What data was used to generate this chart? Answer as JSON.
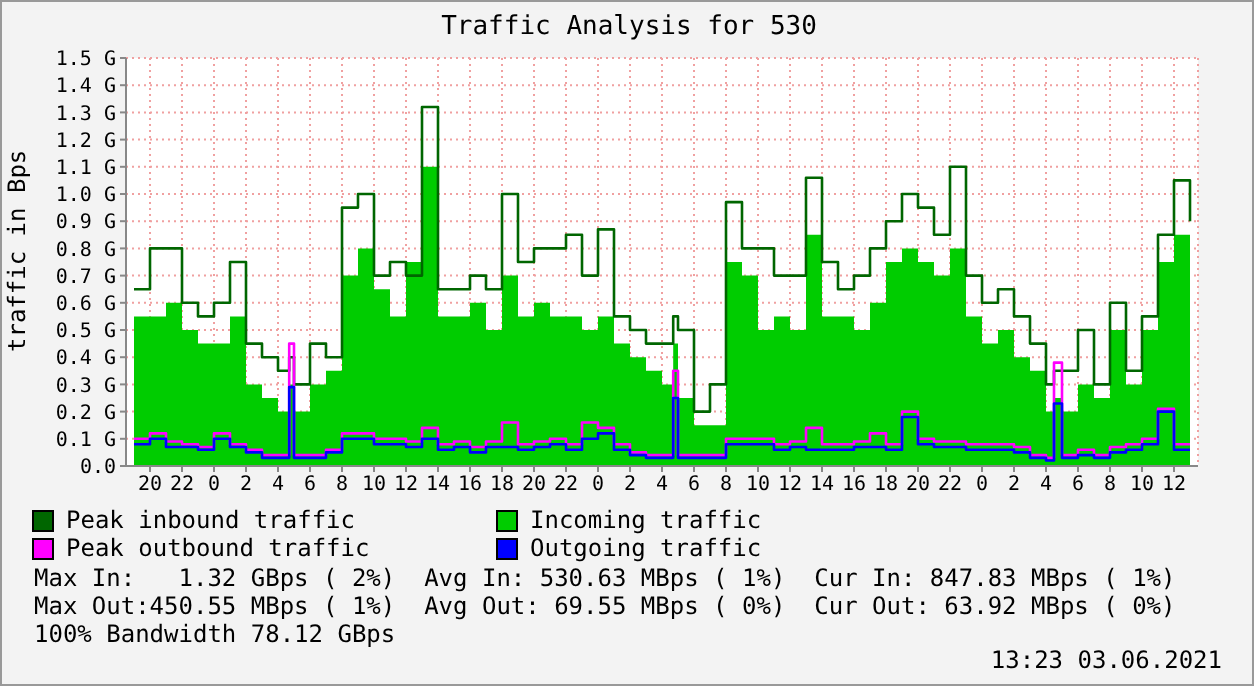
{
  "chart_data": {
    "type": "step",
    "title": "Traffic Analysis for 530",
    "ylabel": "traffic in Bps",
    "x": [
      "2021-05-31T19:00",
      "2021-05-31T20:00",
      "2021-05-31T21:00",
      "2021-05-31T22:00",
      "2021-05-31T23:00",
      "2021-06-01T00:00",
      "2021-06-01T01:00",
      "2021-06-01T02:00",
      "2021-06-01T03:00",
      "2021-06-01T04:00",
      "2021-06-01T04:42",
      "2021-06-01T05:00",
      "2021-06-01T06:00",
      "2021-06-01T07:00",
      "2021-06-01T08:00",
      "2021-06-01T09:00",
      "2021-06-01T10:00",
      "2021-06-01T11:00",
      "2021-06-01T12:00",
      "2021-06-01T13:00",
      "2021-06-01T14:00",
      "2021-06-01T15:00",
      "2021-06-01T16:00",
      "2021-06-01T17:00",
      "2021-06-01T18:00",
      "2021-06-01T19:00",
      "2021-06-01T20:00",
      "2021-06-01T21:00",
      "2021-06-01T22:00",
      "2021-06-01T23:00",
      "2021-06-02T00:00",
      "2021-06-02T01:00",
      "2021-06-02T02:00",
      "2021-06-02T03:00",
      "2021-06-02T04:00",
      "2021-06-02T04:42",
      "2021-06-02T05:00",
      "2021-06-02T06:00",
      "2021-06-02T07:00",
      "2021-06-02T08:00",
      "2021-06-02T09:00",
      "2021-06-02T10:00",
      "2021-06-02T11:00",
      "2021-06-02T12:00",
      "2021-06-02T13:00",
      "2021-06-02T14:00",
      "2021-06-02T15:00",
      "2021-06-02T16:00",
      "2021-06-02T17:00",
      "2021-06-02T18:00",
      "2021-06-02T19:00",
      "2021-06-02T20:00",
      "2021-06-02T21:00",
      "2021-06-02T22:00",
      "2021-06-02T23:00",
      "2021-06-03T00:00",
      "2021-06-03T01:00",
      "2021-06-03T02:00",
      "2021-06-03T03:00",
      "2021-06-03T04:00",
      "2021-06-03T04:30",
      "2021-06-03T05:00",
      "2021-06-03T06:00",
      "2021-06-03T07:00",
      "2021-06-03T08:00",
      "2021-06-03T09:00",
      "2021-06-03T10:00",
      "2021-06-03T11:00",
      "2021-06-03T12:00",
      "2021-06-03T13:00"
    ],
    "series": [
      {
        "name": "Peak inbound traffic",
        "color": "#006600",
        "values": [
          0.65,
          0.8,
          0.8,
          0.6,
          0.55,
          0.6,
          0.75,
          0.45,
          0.4,
          0.35,
          0.4,
          0.3,
          0.45,
          0.4,
          0.95,
          1.0,
          0.7,
          0.75,
          0.7,
          1.32,
          0.65,
          0.65,
          0.7,
          0.65,
          1.0,
          0.75,
          0.8,
          0.8,
          0.85,
          0.7,
          0.87,
          0.55,
          0.5,
          0.45,
          0.45,
          0.55,
          0.5,
          0.2,
          0.3,
          0.97,
          0.8,
          0.8,
          0.7,
          0.7,
          1.06,
          0.75,
          0.65,
          0.7,
          0.8,
          0.9,
          1.0,
          0.95,
          0.85,
          1.1,
          0.7,
          0.6,
          0.65,
          0.55,
          0.45,
          0.3,
          0.35,
          0.35,
          0.5,
          0.3,
          0.6,
          0.35,
          0.55,
          0.85,
          1.05,
          0.9
        ]
      },
      {
        "name": "Incoming traffic",
        "type": "area",
        "color": "#00cc00",
        "values": [
          0.55,
          0.55,
          0.6,
          0.5,
          0.45,
          0.45,
          0.55,
          0.3,
          0.25,
          0.2,
          0.3,
          0.2,
          0.3,
          0.35,
          0.7,
          0.8,
          0.65,
          0.55,
          0.75,
          1.1,
          0.55,
          0.55,
          0.6,
          0.5,
          0.7,
          0.55,
          0.6,
          0.55,
          0.55,
          0.5,
          0.55,
          0.45,
          0.4,
          0.35,
          0.3,
          0.45,
          0.25,
          0.15,
          0.15,
          0.75,
          0.7,
          0.5,
          0.55,
          0.5,
          0.85,
          0.55,
          0.55,
          0.5,
          0.6,
          0.75,
          0.8,
          0.75,
          0.7,
          0.8,
          0.55,
          0.45,
          0.5,
          0.4,
          0.35,
          0.2,
          0.25,
          0.2,
          0.3,
          0.25,
          0.5,
          0.3,
          0.5,
          0.75,
          0.85,
          0.8
        ]
      },
      {
        "name": "Peak outbound traffic",
        "color": "#ff00ff",
        "values": [
          0.1,
          0.12,
          0.09,
          0.08,
          0.07,
          0.12,
          0.08,
          0.06,
          0.04,
          0.04,
          0.45,
          0.04,
          0.04,
          0.06,
          0.12,
          0.12,
          0.1,
          0.1,
          0.09,
          0.14,
          0.08,
          0.09,
          0.07,
          0.09,
          0.16,
          0.08,
          0.09,
          0.1,
          0.08,
          0.16,
          0.14,
          0.08,
          0.05,
          0.04,
          0.04,
          0.35,
          0.04,
          0.04,
          0.04,
          0.1,
          0.1,
          0.1,
          0.08,
          0.09,
          0.14,
          0.08,
          0.08,
          0.09,
          0.12,
          0.08,
          0.2,
          0.1,
          0.09,
          0.09,
          0.08,
          0.08,
          0.08,
          0.07,
          0.04,
          0.03,
          0.38,
          0.04,
          0.06,
          0.04,
          0.07,
          0.08,
          0.1,
          0.21,
          0.08,
          0.08
        ]
      },
      {
        "name": "Outgoing traffic",
        "color": "#0000ff",
        "values": [
          0.08,
          0.1,
          0.07,
          0.07,
          0.06,
          0.1,
          0.07,
          0.05,
          0.03,
          0.03,
          0.29,
          0.03,
          0.03,
          0.05,
          0.1,
          0.1,
          0.08,
          0.08,
          0.07,
          0.1,
          0.06,
          0.07,
          0.05,
          0.07,
          0.07,
          0.06,
          0.07,
          0.08,
          0.06,
          0.1,
          0.12,
          0.06,
          0.04,
          0.03,
          0.03,
          0.25,
          0.03,
          0.03,
          0.03,
          0.08,
          0.08,
          0.08,
          0.06,
          0.07,
          0.06,
          0.06,
          0.06,
          0.07,
          0.07,
          0.06,
          0.18,
          0.08,
          0.07,
          0.07,
          0.06,
          0.06,
          0.06,
          0.05,
          0.03,
          0.02,
          0.23,
          0.03,
          0.04,
          0.03,
          0.05,
          0.06,
          0.08,
          0.2,
          0.06,
          0.06
        ]
      }
    ],
    "xlim": [
      "2021-05-31T18:30",
      "2021-06-03T13:30"
    ],
    "xticks": [
      {
        "value": "2021-05-31T20:00",
        "label": "20"
      },
      {
        "value": "2021-05-31T22:00",
        "label": "22"
      },
      {
        "value": "2021-06-01T00:00",
        "label": "0"
      },
      {
        "value": "2021-06-01T02:00",
        "label": "2"
      },
      {
        "value": "2021-06-01T04:00",
        "label": "4"
      },
      {
        "value": "2021-06-01T06:00",
        "label": "6"
      },
      {
        "value": "2021-06-01T08:00",
        "label": "8"
      },
      {
        "value": "2021-06-01T10:00",
        "label": "10"
      },
      {
        "value": "2021-06-01T12:00",
        "label": "12"
      },
      {
        "value": "2021-06-01T14:00",
        "label": "14"
      },
      {
        "value": "2021-06-01T16:00",
        "label": "16"
      },
      {
        "value": "2021-06-01T18:00",
        "label": "18"
      },
      {
        "value": "2021-06-01T20:00",
        "label": "20"
      },
      {
        "value": "2021-06-01T22:00",
        "label": "22"
      },
      {
        "value": "2021-06-02T00:00",
        "label": "0"
      },
      {
        "value": "2021-06-02T02:00",
        "label": "2"
      },
      {
        "value": "2021-06-02T04:00",
        "label": "4"
      },
      {
        "value": "2021-06-02T06:00",
        "label": "6"
      },
      {
        "value": "2021-06-02T08:00",
        "label": "8"
      },
      {
        "value": "2021-06-02T10:00",
        "label": "10"
      },
      {
        "value": "2021-06-02T12:00",
        "label": "12"
      },
      {
        "value": "2021-06-02T14:00",
        "label": "14"
      },
      {
        "value": "2021-06-02T16:00",
        "label": "16"
      },
      {
        "value": "2021-06-02T18:00",
        "label": "18"
      },
      {
        "value": "2021-06-02T20:00",
        "label": "20"
      },
      {
        "value": "2021-06-02T22:00",
        "label": "22"
      },
      {
        "value": "2021-06-03T00:00",
        "label": "0"
      },
      {
        "value": "2021-06-03T02:00",
        "label": "2"
      },
      {
        "value": "2021-06-03T04:00",
        "label": "4"
      },
      {
        "value": "2021-06-03T06:00",
        "label": "6"
      },
      {
        "value": "2021-06-03T08:00",
        "label": "8"
      },
      {
        "value": "2021-06-03T10:00",
        "label": "10"
      },
      {
        "value": "2021-06-03T12:00",
        "label": "12"
      }
    ],
    "ylim": [
      0,
      1.5
    ],
    "yticks": [
      {
        "value": 0,
        "label": "0.0"
      },
      {
        "value": 0.1,
        "label": "0.1 G"
      },
      {
        "value": 0.2,
        "label": "0.2 G"
      },
      {
        "value": 0.3,
        "label": "0.3 G"
      },
      {
        "value": 0.4,
        "label": "0.4 G"
      },
      {
        "value": 0.5,
        "label": "0.5 G"
      },
      {
        "value": 0.6,
        "label": "0.6 G"
      },
      {
        "value": 0.7,
        "label": "0.7 G"
      },
      {
        "value": 0.8,
        "label": "0.8 G"
      },
      {
        "value": 0.9,
        "label": "0.9 G"
      },
      {
        "value": 1.0,
        "label": "1.0 G"
      },
      {
        "value": 1.1,
        "label": "1.1 G"
      },
      {
        "value": 1.2,
        "label": "1.2 G"
      },
      {
        "value": 1.3,
        "label": "1.3 G"
      },
      {
        "value": 1.4,
        "label": "1.4 G"
      },
      {
        "value": 1.5,
        "label": "1.5 G"
      }
    ],
    "grid": true,
    "legend": "bottom",
    "annotations": [
      "Max In:   1.32 GBps ( 2%)  Avg In: 530.63 MBps ( 1%)  Cur In: 847.83 MBps ( 1%)",
      "Max Out:450.55 MBps ( 1%)  Avg Out: 69.55 MBps ( 0%)  Cur Out: 63.92 MBps ( 0%)",
      "100% Bandwidth 78.12 GBps",
      "13:23 03.06.2021"
    ]
  }
}
